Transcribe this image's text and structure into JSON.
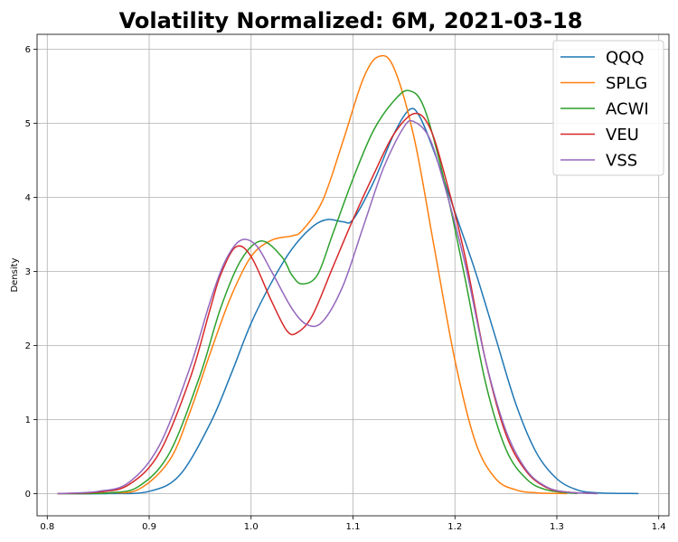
{
  "chart_data": {
    "type": "line",
    "title": "Volatility Normalized: 6M, 2021-03-18",
    "xlabel": "",
    "ylabel": "Density",
    "xlim": [
      0.79,
      1.41
    ],
    "ylim": [
      -0.3,
      6.2
    ],
    "xticks": [
      0.8,
      0.9,
      1.0,
      1.1,
      1.2,
      1.3,
      1.4
    ],
    "xtick_labels": [
      "0.8",
      "0.9",
      "1.0",
      "1.1",
      "1.2",
      "1.3",
      "1.4"
    ],
    "yticks": [
      0,
      1,
      2,
      3,
      4,
      5,
      6
    ],
    "ytick_labels": [
      "0",
      "1",
      "2",
      "3",
      "4",
      "5",
      "6"
    ],
    "grid": true,
    "legend": "top-right",
    "series": [
      {
        "name": "QQQ",
        "color": "#1f77b4",
        "points": [
          [
            0.81,
            0
          ],
          [
            0.86,
            0
          ],
          [
            0.9,
            0.03
          ],
          [
            0.93,
            0.25
          ],
          [
            0.96,
            0.95
          ],
          [
            0.98,
            1.6
          ],
          [
            1.0,
            2.3
          ],
          [
            1.02,
            2.85
          ],
          [
            1.04,
            3.3
          ],
          [
            1.06,
            3.6
          ],
          [
            1.075,
            3.7
          ],
          [
            1.09,
            3.67
          ],
          [
            1.1,
            3.7
          ],
          [
            1.12,
            4.2
          ],
          [
            1.14,
            4.85
          ],
          [
            1.155,
            5.18
          ],
          [
            1.165,
            5.1
          ],
          [
            1.18,
            4.6
          ],
          [
            1.2,
            3.8
          ],
          [
            1.22,
            3.0
          ],
          [
            1.24,
            2.1
          ],
          [
            1.26,
            1.2
          ],
          [
            1.28,
            0.55
          ],
          [
            1.3,
            0.2
          ],
          [
            1.32,
            0.05
          ],
          [
            1.34,
            0.01
          ],
          [
            1.38,
            0
          ]
        ]
      },
      {
        "name": "SPLG",
        "color": "#ff7f0e",
        "points": [
          [
            0.81,
            0
          ],
          [
            0.86,
            0.01
          ],
          [
            0.89,
            0.06
          ],
          [
            0.92,
            0.45
          ],
          [
            0.94,
            1.1
          ],
          [
            0.96,
            1.9
          ],
          [
            0.98,
            2.65
          ],
          [
            1.0,
            3.2
          ],
          [
            1.02,
            3.42
          ],
          [
            1.04,
            3.48
          ],
          [
            1.05,
            3.55
          ],
          [
            1.07,
            3.95
          ],
          [
            1.09,
            4.75
          ],
          [
            1.11,
            5.6
          ],
          [
            1.125,
            5.9
          ],
          [
            1.14,
            5.75
          ],
          [
            1.16,
            4.8
          ],
          [
            1.18,
            3.3
          ],
          [
            1.2,
            1.8
          ],
          [
            1.22,
            0.7
          ],
          [
            1.24,
            0.2
          ],
          [
            1.26,
            0.05
          ],
          [
            1.28,
            0.01
          ],
          [
            1.31,
            0
          ]
        ]
      },
      {
        "name": "ACWI",
        "color": "#2ca02c",
        "points": [
          [
            0.81,
            0
          ],
          [
            0.86,
            0.01
          ],
          [
            0.89,
            0.1
          ],
          [
            0.92,
            0.55
          ],
          [
            0.95,
            1.6
          ],
          [
            0.97,
            2.5
          ],
          [
            0.99,
            3.15
          ],
          [
            1.01,
            3.41
          ],
          [
            1.03,
            3.2
          ],
          [
            1.04,
            2.95
          ],
          [
            1.05,
            2.83
          ],
          [
            1.065,
            2.95
          ],
          [
            1.08,
            3.5
          ],
          [
            1.1,
            4.25
          ],
          [
            1.12,
            4.9
          ],
          [
            1.14,
            5.3
          ],
          [
            1.155,
            5.44
          ],
          [
            1.17,
            5.2
          ],
          [
            1.19,
            4.2
          ],
          [
            1.21,
            2.9
          ],
          [
            1.23,
            1.5
          ],
          [
            1.25,
            0.6
          ],
          [
            1.27,
            0.2
          ],
          [
            1.29,
            0.05
          ],
          [
            1.32,
            0
          ]
        ]
      },
      {
        "name": "VEU",
        "color": "#d62728",
        "points": [
          [
            0.81,
            0
          ],
          [
            0.85,
            0.02
          ],
          [
            0.88,
            0.12
          ],
          [
            0.91,
            0.55
          ],
          [
            0.94,
            1.55
          ],
          [
            0.96,
            2.5
          ],
          [
            0.97,
            2.95
          ],
          [
            0.985,
            3.33
          ],
          [
            1.0,
            3.2
          ],
          [
            1.02,
            2.6
          ],
          [
            1.035,
            2.2
          ],
          [
            1.045,
            2.17
          ],
          [
            1.06,
            2.4
          ],
          [
            1.08,
            3.05
          ],
          [
            1.1,
            3.7
          ],
          [
            1.12,
            4.3
          ],
          [
            1.14,
            4.85
          ],
          [
            1.16,
            5.13
          ],
          [
            1.175,
            4.95
          ],
          [
            1.19,
            4.3
          ],
          [
            1.21,
            3.2
          ],
          [
            1.23,
            1.8
          ],
          [
            1.25,
            0.8
          ],
          [
            1.27,
            0.3
          ],
          [
            1.29,
            0.08
          ],
          [
            1.31,
            0.02
          ],
          [
            1.34,
            0
          ]
        ]
      },
      {
        "name": "VSS",
        "color": "#9467bd",
        "points": [
          [
            0.81,
            0
          ],
          [
            0.85,
            0.03
          ],
          [
            0.88,
            0.15
          ],
          [
            0.91,
            0.65
          ],
          [
            0.94,
            1.7
          ],
          [
            0.96,
            2.6
          ],
          [
            0.975,
            3.15
          ],
          [
            0.99,
            3.42
          ],
          [
            1.005,
            3.35
          ],
          [
            1.02,
            3.0
          ],
          [
            1.04,
            2.5
          ],
          [
            1.055,
            2.28
          ],
          [
            1.07,
            2.32
          ],
          [
            1.09,
            2.8
          ],
          [
            1.11,
            3.6
          ],
          [
            1.13,
            4.4
          ],
          [
            1.15,
            4.95
          ],
          [
            1.16,
            5.02
          ],
          [
            1.175,
            4.8
          ],
          [
            1.19,
            4.15
          ],
          [
            1.21,
            3.1
          ],
          [
            1.23,
            1.8
          ],
          [
            1.25,
            0.85
          ],
          [
            1.27,
            0.32
          ],
          [
            1.29,
            0.09
          ],
          [
            1.31,
            0.02
          ],
          [
            1.34,
            0
          ]
        ]
      }
    ]
  }
}
